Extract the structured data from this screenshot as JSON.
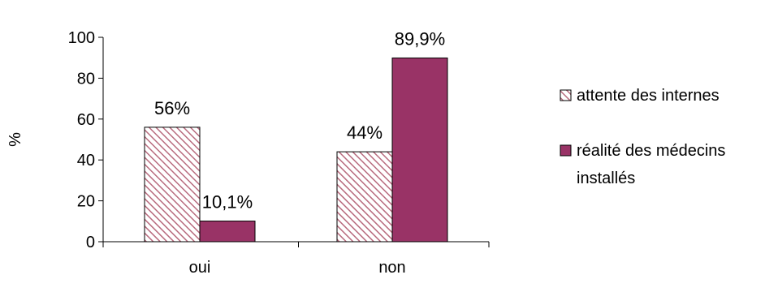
{
  "chart_data": {
    "type": "bar",
    "ylabel": "%",
    "ylim": [
      0,
      100
    ],
    "yticks": [
      0,
      20,
      40,
      60,
      80,
      100
    ],
    "categories": [
      "oui",
      "non"
    ],
    "series": [
      {
        "name": "attente des internes",
        "values": [
          56,
          44
        ],
        "labels": [
          "56%",
          "44%"
        ],
        "color": "#b86b7e",
        "fill": "hatched"
      },
      {
        "name": "réalité des médecins installés",
        "name_lines": [
          "réalité des médecins",
          "installés"
        ],
        "values": [
          10.1,
          89.9
        ],
        "labels": [
          "10,1%",
          "89,9%"
        ],
        "color": "#993366",
        "fill": "solid"
      }
    ],
    "grid": false,
    "legend_position": "right"
  }
}
